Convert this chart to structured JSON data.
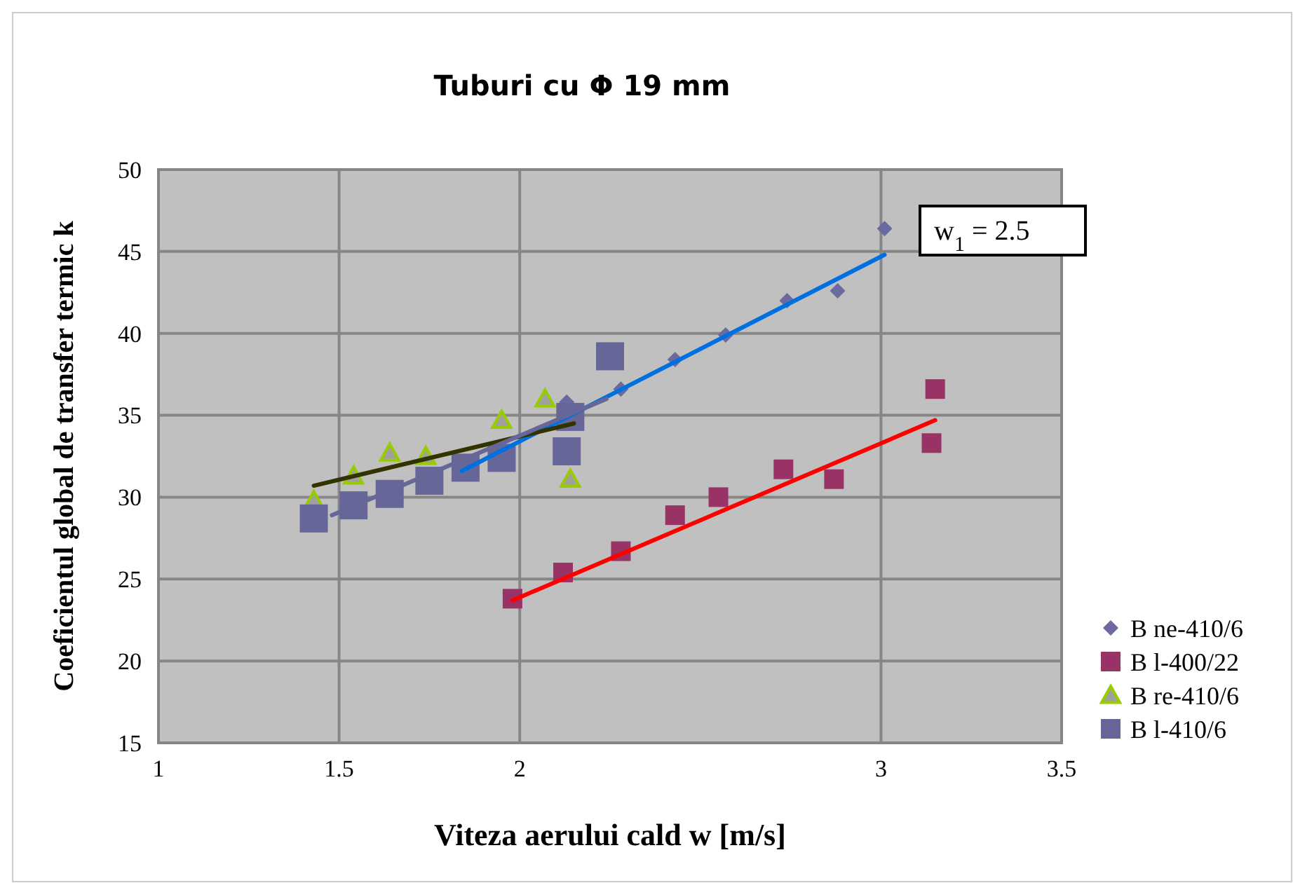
{
  "chart_data": {
    "type": "scatter",
    "title": "Tuburi cu Φ 19 mm",
    "xlabel": "Viteza aerului cald w [m/s]",
    "ylabel": "Coeficientul global de transfer termic k",
    "xlim": [
      1,
      3.5
    ],
    "xticks": [
      1,
      1.5,
      2,
      3,
      3.5
    ],
    "ylim": [
      15,
      50
    ],
    "yticks": [
      15,
      20,
      25,
      30,
      35,
      40,
      45,
      50
    ],
    "grid": true,
    "legend": "right",
    "annotations": [
      "w$_{1}$ = 2.5"
    ],
    "series": [
      {
        "name": "B ne-410/6",
        "color": "#6b6a9e",
        "marker": "diamond",
        "x": [
          2.13,
          2.28,
          2.43,
          2.57,
          2.74,
          2.88,
          3.01
        ],
        "values": [
          35.8,
          36.6,
          38.4,
          39.9,
          42.0,
          42.6,
          46.4
        ]
      },
      {
        "name": "B l-400/22",
        "color": "#993366",
        "marker": "square",
        "x": [
          1.98,
          2.12,
          2.28,
          2.43,
          2.55,
          2.73,
          2.87,
          3.15,
          3.14
        ],
        "values": [
          23.8,
          25.4,
          26.7,
          28.9,
          30.0,
          31.7,
          31.1,
          36.6,
          33.3
        ]
      },
      {
        "name": "B re-410/6",
        "color": "#99cc00",
        "marker": "triangle",
        "x": [
          1.43,
          1.54,
          1.64,
          1.74,
          1.95,
          2.07,
          2.14
        ],
        "values": [
          29.8,
          31.3,
          32.7,
          32.5,
          34.7,
          36.0,
          31.1
        ]
      },
      {
        "name": "B l-410/6",
        "color": "#666699",
        "marker": "square",
        "x": [
          1.43,
          1.54,
          1.64,
          1.75,
          1.85,
          1.95,
          2.13,
          2.14,
          2.25
        ],
        "values": [
          28.7,
          29.5,
          30.2,
          31.0,
          31.8,
          32.4,
          32.8,
          34.9,
          38.6
        ]
      },
      {
        "type": "line",
        "color": "#0070e0",
        "marker": "none",
        "x": [
          1.84,
          3.01
        ],
        "values": [
          31.6,
          44.8
        ]
      },
      {
        "type": "line",
        "color": "#ff0000",
        "marker": "none",
        "x": [
          1.98,
          3.15
        ],
        "values": [
          23.7,
          34.7
        ]
      },
      {
        "type": "line",
        "color": "#333300",
        "marker": "none",
        "x": [
          1.43,
          2.15
        ],
        "values": [
          30.7,
          34.5
        ]
      },
      {
        "type": "line",
        "color": "#666699",
        "marker": "none",
        "x": [
          1.48,
          2.24
        ],
        "values": [
          28.9,
          36.0
        ]
      }
    ]
  }
}
